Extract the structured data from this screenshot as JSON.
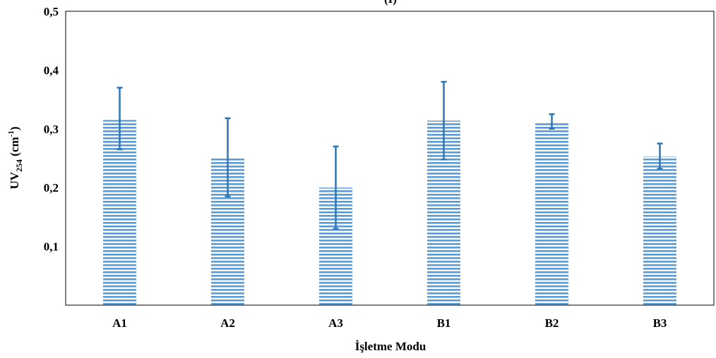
{
  "chart_data": {
    "type": "bar",
    "title": "(I)",
    "xlabel": "İşletme Modu",
    "ylabel": {
      "main": "UV",
      "sub": "254",
      "unit_open": " (cm",
      "sup": "-1",
      "unit_close": ")"
    },
    "categories": [
      "A1",
      "A2",
      "A3",
      "B1",
      "B2",
      "B3"
    ],
    "values": [
      0.315,
      0.251,
      0.2,
      0.314,
      0.311,
      0.253
    ],
    "error_low": [
      0.265,
      0.185,
      0.13,
      0.248,
      0.3,
      0.232
    ],
    "error_high": [
      0.37,
      0.318,
      0.27,
      0.38,
      0.325,
      0.275
    ],
    "ylim": [
      0,
      0.5
    ],
    "yticks": [
      "0,1",
      "0,2",
      "0,3",
      "0,4",
      "0,5"
    ],
    "ytick_values": [
      0.1,
      0.2,
      0.3,
      0.4,
      0.5
    ],
    "grid": false,
    "legend": "none",
    "colors": {
      "bar_stripe": "#5b9bd5",
      "error_bar": "#2e75b6",
      "axis": "#000000"
    }
  }
}
